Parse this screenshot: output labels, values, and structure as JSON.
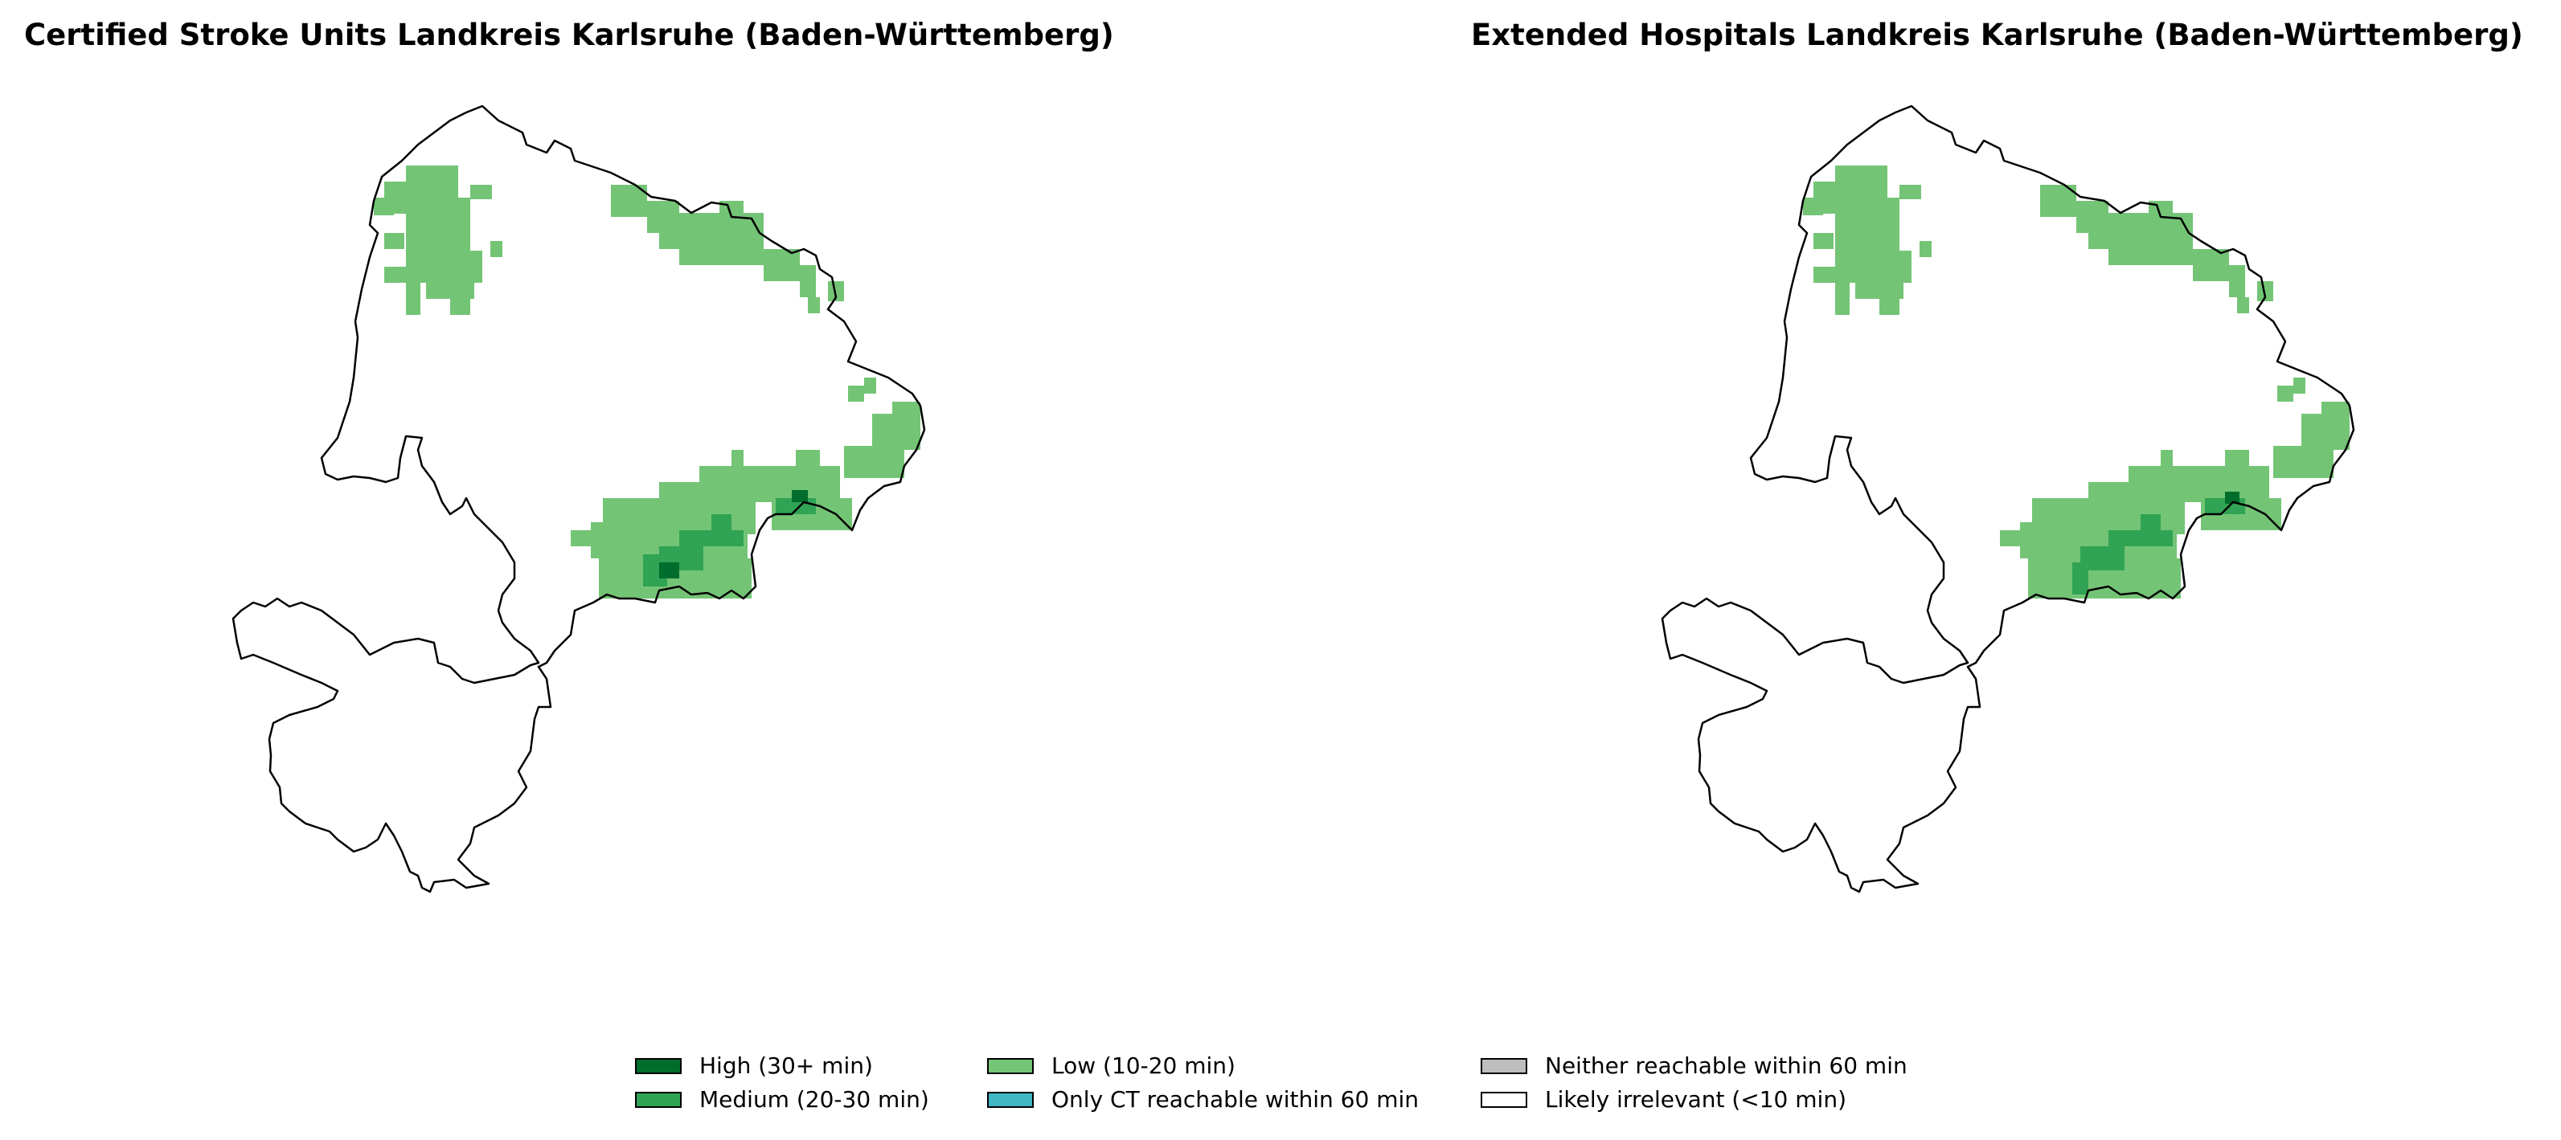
{
  "titles": {
    "left": "Certified Stroke Units Landkreis Karlsruhe (Baden-Württemberg)",
    "right": "Extended Hospitals Landkreis Karlsruhe (Baden-Württemberg)"
  },
  "legend": [
    {
      "label": "High (30+ min)",
      "color": "#006d2c"
    },
    {
      "label": "Medium (20-30 min)",
      "color": "#31a354"
    },
    {
      "label": "Low (10-20 min)",
      "color": "#74c476"
    },
    {
      "label": "Only CT reachable within 60 min",
      "color": "#41b6c4"
    },
    {
      "label": "Neither reachable within 60 min",
      "color": "#bdbdbd"
    },
    {
      "label": "Likely irrelevant (<10 min)",
      "color": "#ffffff"
    }
  ]
}
